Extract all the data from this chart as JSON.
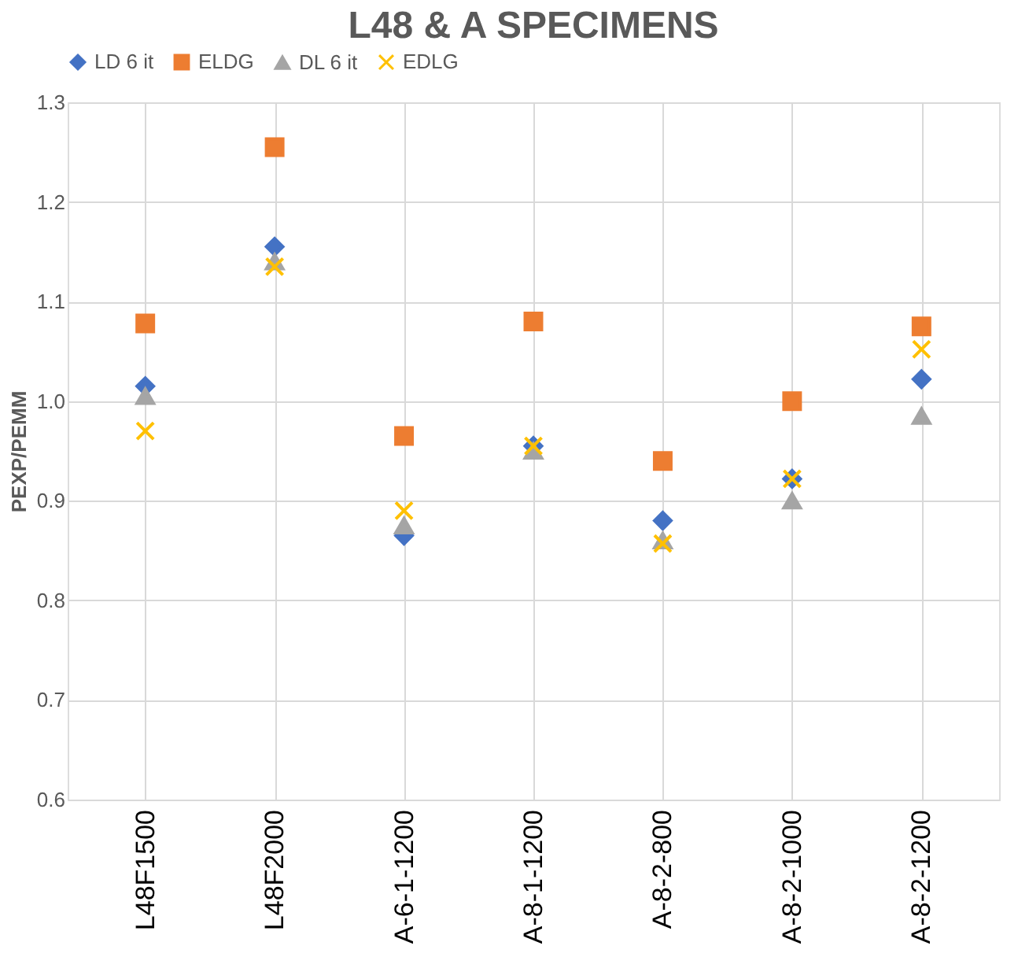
{
  "chart_data": {
    "type": "scatter",
    "title": "L48 & A SPECIMENS",
    "ylabel": "PEXP/PEMM",
    "categories": [
      "L48F1500",
      "L48F2000",
      "A-6-1-1200",
      "A-8-1-1200",
      "A-8-2-800",
      "A-8-2-1000",
      "A-8-2-1200"
    ],
    "series": [
      {
        "name": "LD 6 it",
        "color": "#4472c4",
        "marker": "diamond",
        "values": [
          1.015,
          1.155,
          0.865,
          0.955,
          0.88,
          0.922,
          1.022
        ]
      },
      {
        "name": "ELDG",
        "color": "#ed7d31",
        "marker": "square",
        "values": [
          1.078,
          1.255,
          0.965,
          1.08,
          0.94,
          1.0,
          1.075
        ]
      },
      {
        "name": "DL 6 it",
        "color": "#a5a5a5",
        "marker": "triangle",
        "values": [
          1.005,
          1.14,
          0.875,
          0.95,
          0.86,
          0.9,
          0.985
        ]
      },
      {
        "name": "EDLG",
        "color": "#ffc000",
        "marker": "cross",
        "values": [
          0.97,
          1.135,
          0.89,
          0.955,
          0.857,
          0.922,
          1.052
        ]
      }
    ],
    "ylim": [
      0.6,
      1.3
    ],
    "yticks": [
      0.6,
      0.7,
      0.8,
      0.9,
      {
        "value": 1,
        "label": "1.0"
      },
      1.1,
      1.2,
      1.3
    ],
    "grid": true,
    "legend": "top"
  }
}
